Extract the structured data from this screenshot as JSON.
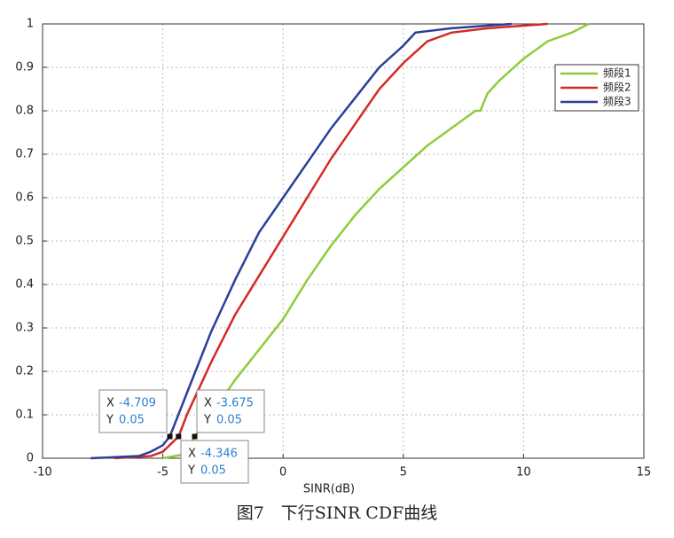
{
  "chart_data": {
    "type": "line",
    "xlabel": "SINR(dB)",
    "caption": "图7　下行SINR CDF曲线",
    "xlim": [
      -10,
      15
    ],
    "xticks": [
      -10,
      -5,
      0,
      5,
      10,
      15
    ],
    "ylim": [
      0,
      1
    ],
    "yticks": [
      0,
      0.1,
      0.2,
      0.3,
      0.4,
      0.5,
      0.6,
      0.7,
      0.8,
      0.9,
      1
    ],
    "grid": true,
    "legend": "upper right",
    "series": [
      {
        "name": "频段1",
        "color": "#8fcc3a",
        "x": [
          -5,
          -4,
          -3.675,
          -3,
          -2,
          -1,
          0,
          1,
          2,
          3,
          4,
          5,
          6,
          7,
          8,
          8.2,
          8.5,
          9,
          10,
          11,
          12,
          12.7
        ],
        "values": [
          0,
          0.01,
          0.05,
          0.1,
          0.18,
          0.25,
          0.32,
          0.41,
          0.49,
          0.56,
          0.62,
          0.67,
          0.72,
          0.76,
          0.8,
          0.8,
          0.84,
          0.87,
          0.92,
          0.96,
          0.98,
          1
        ]
      },
      {
        "name": "频段2",
        "color": "#d42a24",
        "x": [
          -7,
          -5.5,
          -5,
          -4.346,
          -4,
          -3,
          -2,
          -1,
          0,
          1,
          2,
          3,
          4,
          5,
          6,
          7,
          8.5,
          11
        ],
        "values": [
          0,
          0.005,
          0.015,
          0.05,
          0.1,
          0.22,
          0.33,
          0.42,
          0.51,
          0.6,
          0.69,
          0.77,
          0.85,
          0.91,
          0.96,
          0.98,
          0.99,
          1
        ]
      },
      {
        "name": "频段3",
        "color": "#2a3f99",
        "x": [
          -8,
          -6,
          -5.5,
          -5,
          -4.709,
          -4,
          -3,
          -2,
          -1,
          0,
          1,
          2,
          3,
          4,
          5,
          5.5,
          7,
          9.5
        ],
        "values": [
          0,
          0.005,
          0.015,
          0.03,
          0.05,
          0.15,
          0.29,
          0.41,
          0.52,
          0.6,
          0.68,
          0.76,
          0.83,
          0.9,
          0.95,
          0.98,
          0.99,
          1
        ]
      }
    ],
    "annotations": [
      {
        "x_name": "X",
        "x": -4.709,
        "y_name": "Y",
        "y": 0.05
      },
      {
        "x_name": "X",
        "x": -3.675,
        "y_name": "Y",
        "y": 0.05
      },
      {
        "x_name": "X",
        "x": -4.346,
        "y_name": "Y",
        "y": 0.05
      }
    ]
  }
}
